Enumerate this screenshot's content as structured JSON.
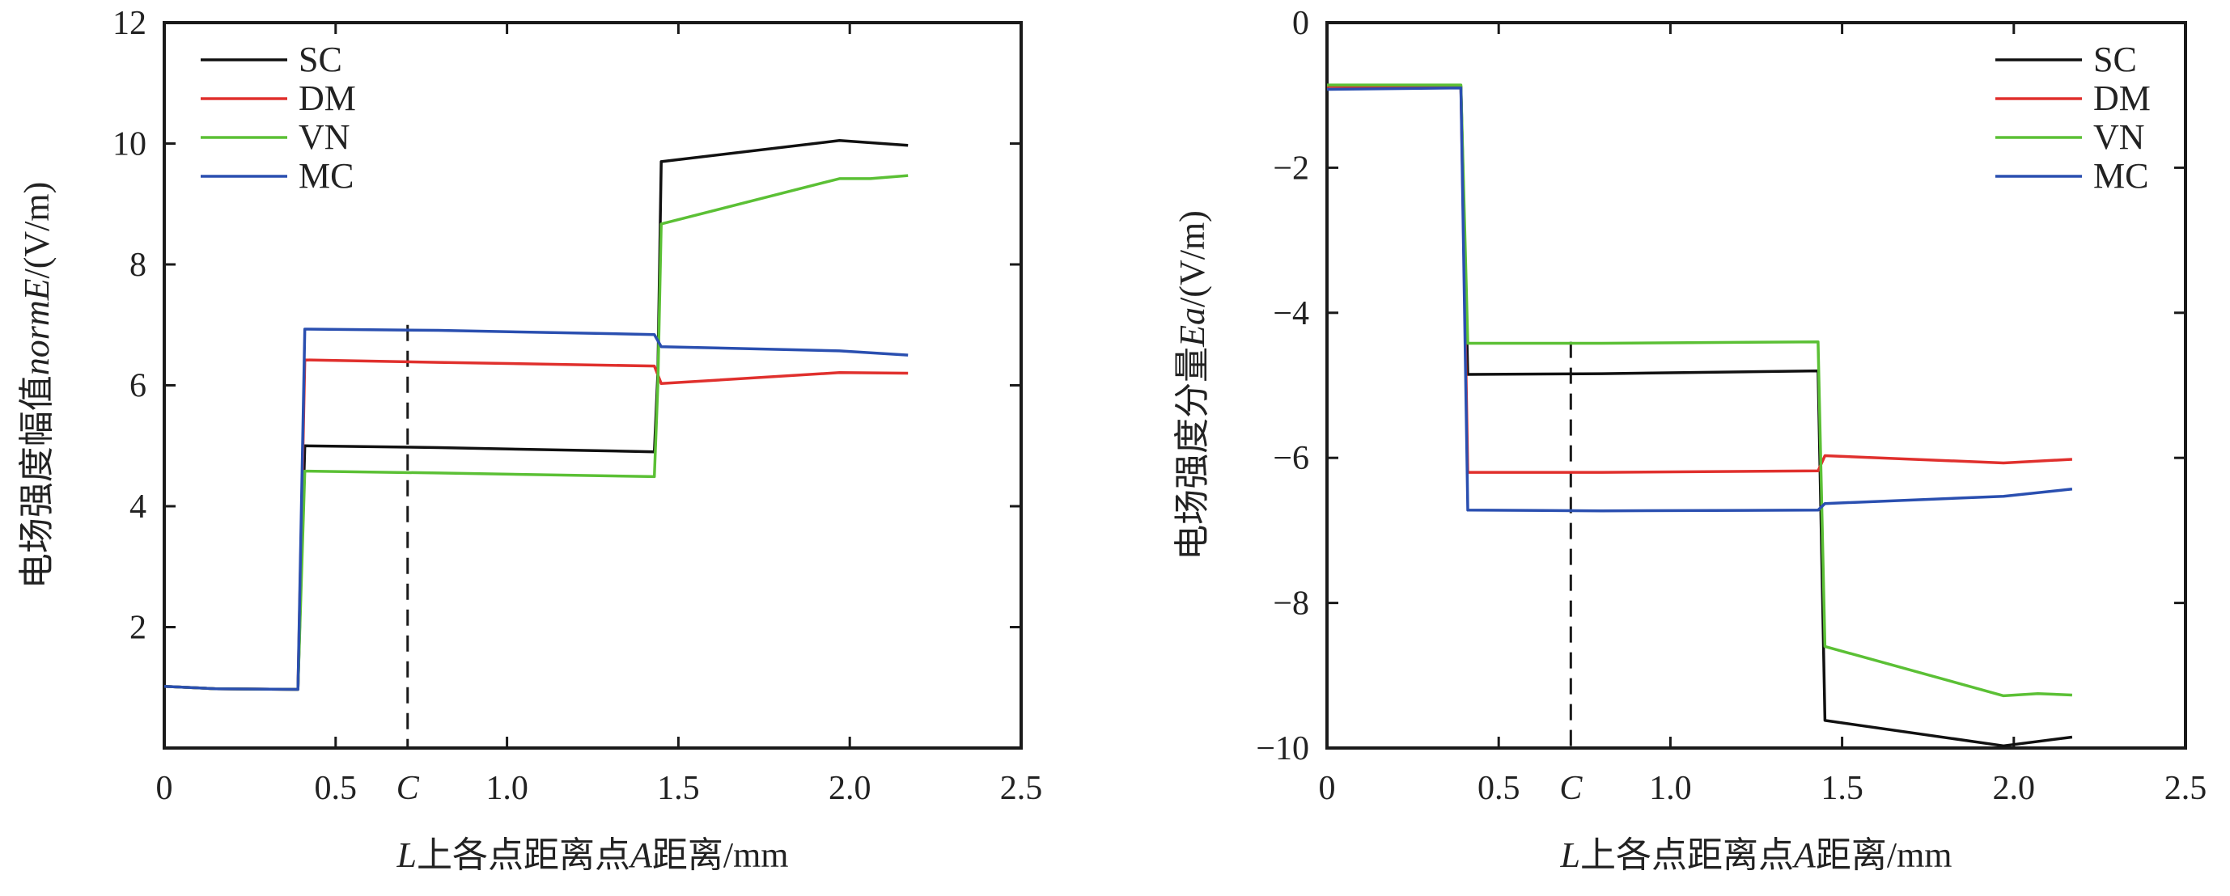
{
  "chart_data": [
    {
      "type": "line",
      "xlabel": {
        "var": "L",
        "text": "上各点距离点",
        "var2": "A",
        "text2": "距离/mm"
      },
      "ylabel": {
        "text": "电场强度幅值",
        "var": "normE",
        "unit": "(V/m)"
      },
      "xlim": [
        0,
        2.5
      ],
      "ylim": [
        0,
        12
      ],
      "xticks": [
        0,
        0.5,
        1.0,
        1.5,
        2.0,
        2.5
      ],
      "xtick_labels": [
        "0",
        "0.5",
        "1.0",
        "1.5",
        "2.0",
        "2.5"
      ],
      "yticks": [
        2,
        4,
        6,
        8,
        10,
        12
      ],
      "ytick_labels": [
        "2",
        "4",
        "6",
        "8",
        "10",
        "12"
      ],
      "marker": {
        "x": 0.71,
        "label": "C"
      },
      "grid": false,
      "legend_position": "top-left",
      "series": [
        {
          "name": "SC",
          "color": "#111111",
          "points": [
            [
              0,
              1.02
            ],
            [
              0.15,
              0.98
            ],
            [
              0.39,
              0.97
            ],
            [
              0.41,
              5.0
            ],
            [
              0.8,
              4.97
            ],
            [
              1.43,
              4.9
            ],
            [
              1.44,
              6.2
            ],
            [
              1.45,
              9.7
            ],
            [
              1.97,
              10.05
            ],
            [
              2.17,
              9.97
            ]
          ]
        },
        {
          "name": "DM",
          "color": "#e0302d",
          "points": [
            [
              0,
              1.02
            ],
            [
              0.15,
              0.98
            ],
            [
              0.39,
              0.97
            ],
            [
              0.41,
              6.42
            ],
            [
              0.8,
              6.38
            ],
            [
              1.43,
              6.32
            ],
            [
              1.45,
              6.03
            ],
            [
              1.97,
              6.21
            ],
            [
              2.17,
              6.2
            ]
          ]
        },
        {
          "name": "VN",
          "color": "#5bc035",
          "points": [
            [
              0,
              1.02
            ],
            [
              0.15,
              0.98
            ],
            [
              0.39,
              0.97
            ],
            [
              0.41,
              4.58
            ],
            [
              0.8,
              4.55
            ],
            [
              1.43,
              4.49
            ],
            [
              1.44,
              6.0
            ],
            [
              1.45,
              8.67
            ],
            [
              1.97,
              9.42
            ],
            [
              2.06,
              9.42
            ],
            [
              2.17,
              9.47
            ]
          ]
        },
        {
          "name": "MC",
          "color": "#2a4fb0",
          "points": [
            [
              0,
              1.02
            ],
            [
              0.15,
              0.98
            ],
            [
              0.39,
              0.97
            ],
            [
              0.41,
              6.93
            ],
            [
              0.8,
              6.91
            ],
            [
              1.43,
              6.84
            ],
            [
              1.45,
              6.64
            ],
            [
              1.97,
              6.57
            ],
            [
              2.17,
              6.5
            ]
          ]
        }
      ]
    },
    {
      "type": "line",
      "xlabel": {
        "var": "L",
        "text": "上各点距离点",
        "var2": "A",
        "text2": "距离/mm"
      },
      "ylabel": {
        "text": "电场强度分量",
        "var": "Ea",
        "unit": "(V/m)"
      },
      "xlim": [
        0,
        2.5
      ],
      "ylim": [
        -10,
        0
      ],
      "xticks": [
        0,
        0.5,
        1.0,
        1.5,
        2.0,
        2.5
      ],
      "xtick_labels": [
        "0",
        "0.5",
        "1.0",
        "1.5",
        "2.0",
        "2.5"
      ],
      "yticks": [
        0,
        -2,
        -4,
        -6,
        -8,
        -10
      ],
      "ytick_labels": [
        "0",
        "−2",
        "−4",
        "−6",
        "−8",
        "−10"
      ],
      "marker": {
        "x": 0.71,
        "label": "C"
      },
      "grid": false,
      "legend_position": "top-right",
      "series": [
        {
          "name": "SC",
          "color": "#111111",
          "points": [
            [
              0,
              -0.88
            ],
            [
              0.39,
              -0.88
            ],
            [
              0.41,
              -4.85
            ],
            [
              0.8,
              -4.84
            ],
            [
              1.43,
              -4.8
            ],
            [
              1.45,
              -9.62
            ],
            [
              1.97,
              -9.97
            ],
            [
              2.17,
              -9.85
            ]
          ]
        },
        {
          "name": "DM",
          "color": "#e0302d",
          "points": [
            [
              0,
              -0.88
            ],
            [
              0.39,
              -0.88
            ],
            [
              0.41,
              -6.2
            ],
            [
              0.8,
              -6.2
            ],
            [
              1.43,
              -6.18
            ],
            [
              1.45,
              -5.97
            ],
            [
              1.97,
              -6.07
            ],
            [
              2.17,
              -6.02
            ]
          ]
        },
        {
          "name": "VN",
          "color": "#5bc035",
          "points": [
            [
              0,
              -0.86
            ],
            [
              0.39,
              -0.86
            ],
            [
              0.41,
              -4.42
            ],
            [
              0.8,
              -4.42
            ],
            [
              1.43,
              -4.4
            ],
            [
              1.45,
              -8.6
            ],
            [
              1.97,
              -9.28
            ],
            [
              2.07,
              -9.25
            ],
            [
              2.17,
              -9.27
            ]
          ]
        },
        {
          "name": "MC",
          "color": "#2a4fb0",
          "points": [
            [
              0,
              -0.92
            ],
            [
              0.39,
              -0.9
            ],
            [
              0.41,
              -6.72
            ],
            [
              0.8,
              -6.73
            ],
            [
              1.43,
              -6.72
            ],
            [
              1.45,
              -6.63
            ],
            [
              1.97,
              -6.53
            ],
            [
              2.17,
              -6.43
            ]
          ]
        }
      ]
    }
  ]
}
